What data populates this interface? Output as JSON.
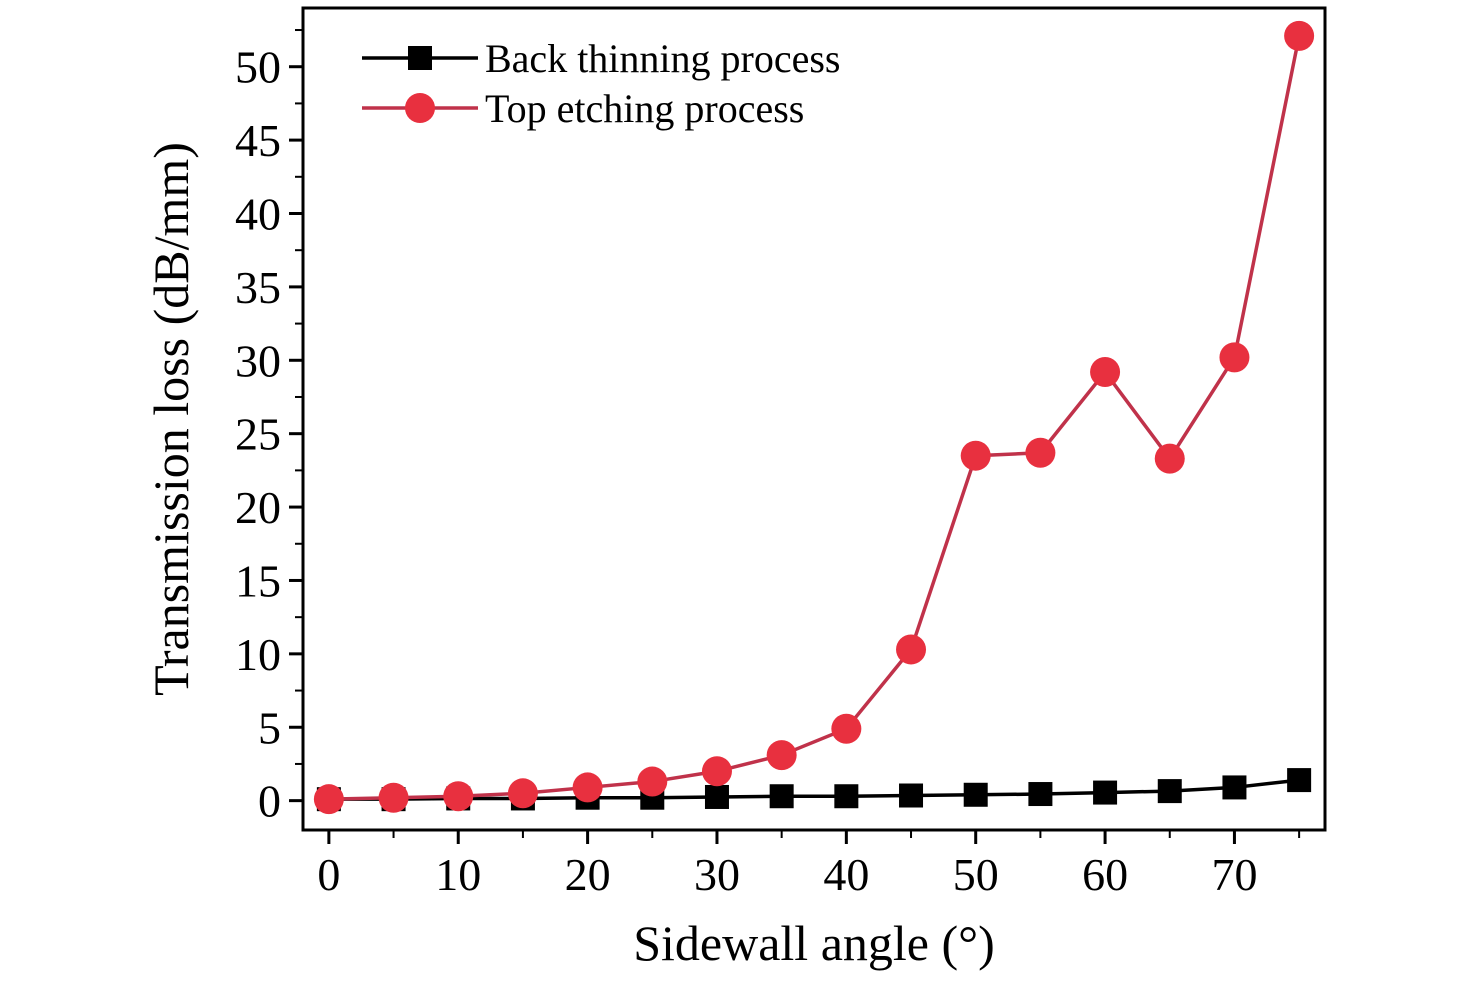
{
  "chart_data": {
    "type": "line",
    "title": "",
    "xlabel": "Sidewall angle (°)",
    "ylabel": "Transmission loss (dB/mm)",
    "xlim": [
      -2,
      77
    ],
    "ylim": [
      -2,
      54
    ],
    "xticks": [
      0,
      10,
      20,
      30,
      40,
      50,
      60,
      70
    ],
    "xtick_labels": [
      "0",
      "10",
      "20",
      "30",
      "40",
      "50",
      "60",
      "70"
    ],
    "yticks": [
      0,
      5,
      10,
      15,
      20,
      25,
      30,
      35,
      40,
      45,
      50
    ],
    "ytick_labels": [
      "0",
      "5",
      "10",
      "15",
      "20",
      "25",
      "30",
      "35",
      "40",
      "45",
      "50"
    ],
    "grid": false,
    "legend_position": "top-left",
    "x": [
      0,
      5,
      10,
      15,
      20,
      25,
      30,
      35,
      40,
      45,
      50,
      55,
      60,
      65,
      70,
      75
    ],
    "series": [
      {
        "name": "Back thinning process",
        "color": "#000000",
        "marker": "square",
        "values": [
          0.1,
          0.1,
          0.15,
          0.15,
          0.2,
          0.2,
          0.25,
          0.3,
          0.3,
          0.35,
          0.4,
          0.45,
          0.55,
          0.65,
          0.9,
          1.4
        ]
      },
      {
        "name": "Top etching process",
        "color": "#e8303f",
        "marker": "circle",
        "values": [
          0.1,
          0.2,
          0.3,
          0.5,
          0.9,
          1.3,
          2.0,
          3.1,
          4.9,
          10.3,
          23.5,
          23.7,
          29.2,
          23.3,
          30.2,
          52.1
        ]
      }
    ]
  }
}
